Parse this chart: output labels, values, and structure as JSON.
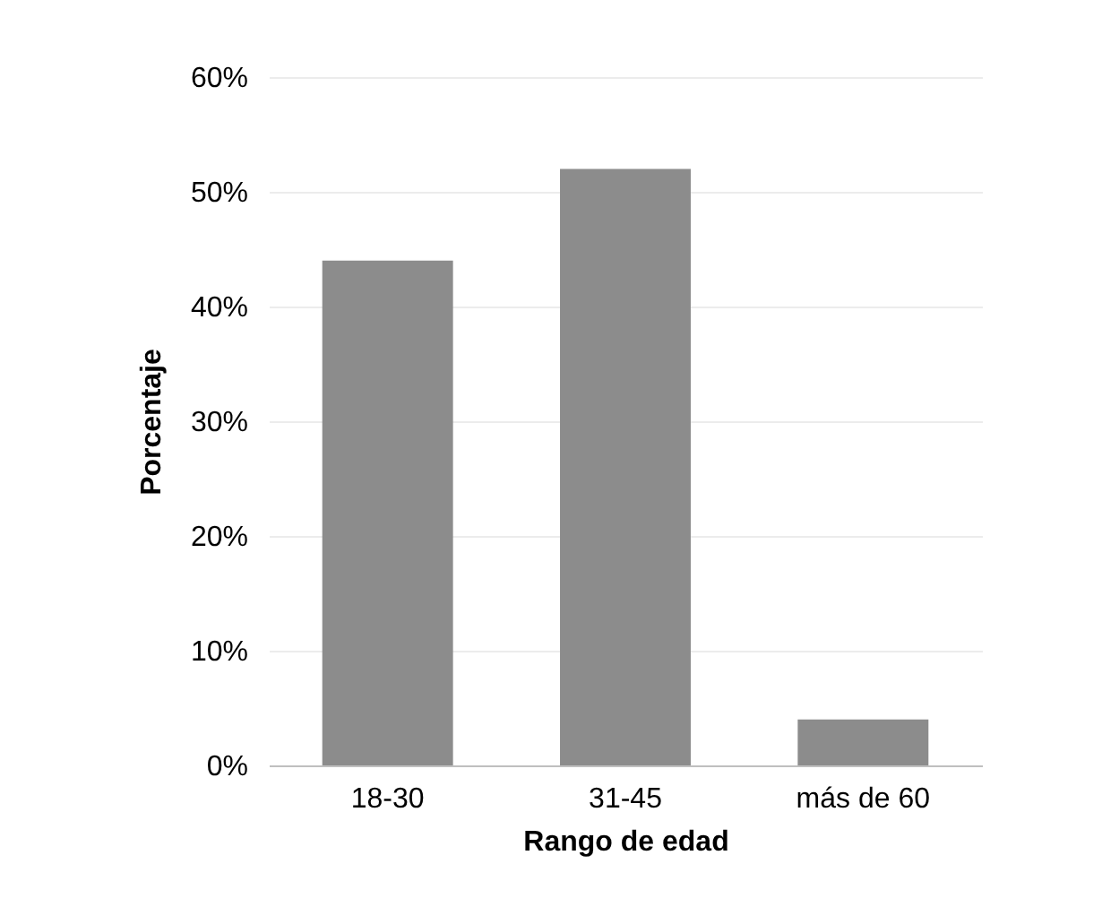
{
  "chart_data": {
    "type": "bar",
    "xlabel": "Rango de edad",
    "ylabel": "Porcentaje",
    "categories": [
      "18-30",
      "31-45",
      "más de 60"
    ],
    "values": [
      44,
      52,
      4
    ],
    "color": "#8c8c8c",
    "ylim": [
      0,
      60
    ],
    "yticks": [
      {
        "value": 0,
        "label": "0%"
      },
      {
        "value": 10,
        "label": "10%"
      },
      {
        "value": 20,
        "label": "20%"
      },
      {
        "value": 30,
        "label": "30%"
      },
      {
        "value": 40,
        "label": "40%"
      },
      {
        "value": 50,
        "label": "50%"
      },
      {
        "value": 60,
        "label": "60%"
      }
    ],
    "grid": "y"
  }
}
